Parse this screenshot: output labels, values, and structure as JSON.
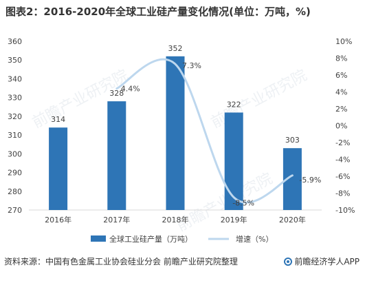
{
  "title": "图表2：2016-2020年全球工业硅产量变化情况(单位：万吨，%)",
  "source_text": "资料来源：中国有色金属工业协会硅业分会 前瞻产业研究院整理",
  "brand_text": "前瞻经济学人APP",
  "watermark_text": "前瞻产业研究院",
  "colors": {
    "bar": "#2e75b6",
    "line": "#bdd7ee",
    "axis": "#d9d9d9",
    "text": "#404040"
  },
  "chart_data": {
    "type": "bar",
    "categories": [
      "2016年",
      "2017年",
      "2018年",
      "2019年",
      "2020年"
    ],
    "series": [
      {
        "name": "全球工业硅产量（万吨）",
        "type": "bar",
        "axis": "left",
        "values": [
          314,
          328,
          352,
          322,
          303
        ],
        "labels": [
          "314",
          "328",
          "352",
          "322",
          "303"
        ]
      },
      {
        "name": "增速（%）",
        "type": "line",
        "axis": "right",
        "smooth": true,
        "values": [
          null,
          4.4,
          7.3,
          -8.5,
          -5.9
        ],
        "labels": [
          "",
          "4.4%",
          "7.3%",
          "-8.5%",
          "-5.9%"
        ]
      }
    ],
    "y_left": {
      "min": 270,
      "max": 360,
      "ticks": [
        270,
        280,
        290,
        300,
        310,
        320,
        330,
        340,
        350,
        360
      ]
    },
    "y_right": {
      "min": -10,
      "max": 10,
      "ticks": [
        -10,
        -8,
        -6,
        -4,
        -2,
        0,
        2,
        4,
        6,
        8,
        10
      ],
      "tick_labels": [
        "-10%",
        "-8%",
        "-6%",
        "-4%",
        "-2%",
        "0%",
        "2%",
        "4%",
        "6%",
        "8%",
        "10%"
      ]
    },
    "legend_position": "bottom"
  }
}
